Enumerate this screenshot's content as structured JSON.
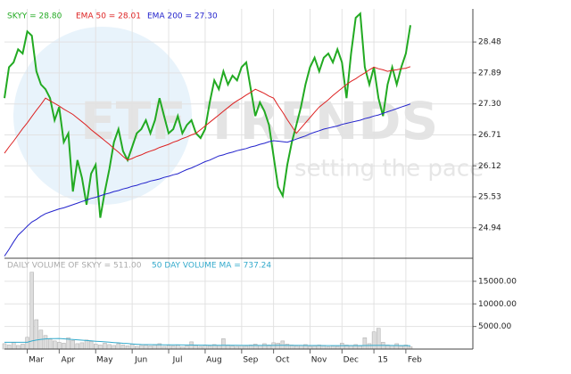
{
  "chart_data": [
    {
      "type": "line",
      "watermark": [
        "ETF TRENDS",
        "setting the pace"
      ],
      "ylim": [
        24.36,
        29.11
      ],
      "yticks": [
        28.48,
        27.89,
        {
          "value": 27.3,
          "label": "27.30"
        },
        26.71,
        26.12,
        25.53,
        24.94
      ],
      "xlim": [
        0,
        89
      ],
      "xticks": [
        {
          "value": 5,
          "label": "Mar"
        },
        {
          "value": 12,
          "label": "Apr"
        },
        {
          "value": 20,
          "label": "May"
        },
        {
          "value": 28,
          "label": "Jun"
        },
        {
          "value": 36,
          "label": "Jul"
        },
        {
          "value": 44,
          "label": "Aug"
        },
        {
          "value": 52,
          "label": "Sep"
        },
        {
          "value": 59,
          "label": "Oct"
        },
        {
          "value": 67,
          "label": "Nov"
        },
        {
          "value": 74,
          "label": "Dec"
        },
        {
          "value": 81,
          "label": "15"
        },
        {
          "value": 88,
          "label": "Feb"
        }
      ],
      "grid": true,
      "series": [
        {
          "name": "SKYY = 28.80",
          "color": "#22aa22",
          "values": [
            27.41,
            28.0,
            28.09,
            28.34,
            28.26,
            28.68,
            28.6,
            27.92,
            27.67,
            27.58,
            27.41,
            26.99,
            27.24,
            26.57,
            26.74,
            25.63,
            26.23,
            25.89,
            25.38,
            25.97,
            26.14,
            25.13,
            25.63,
            26.06,
            26.57,
            26.82,
            26.4,
            26.23,
            26.48,
            26.74,
            26.82,
            26.99,
            26.74,
            26.99,
            27.41,
            27.07,
            26.74,
            26.82,
            27.07,
            26.74,
            26.9,
            26.99,
            26.74,
            26.65,
            26.82,
            27.33,
            27.75,
            27.58,
            27.92,
            27.67,
            27.84,
            27.75,
            28.0,
            28.09,
            27.58,
            27.07,
            27.33,
            27.16,
            26.9,
            26.31,
            25.72,
            25.55,
            26.14,
            26.57,
            26.9,
            27.24,
            27.67,
            28.0,
            28.18,
            27.92,
            28.18,
            28.26,
            28.09,
            28.34,
            28.09,
            27.41,
            28.26,
            28.94,
            29.02,
            28.0,
            27.67,
            28.0,
            27.41,
            27.07,
            27.67,
            28.0,
            27.67,
            28.0,
            28.26,
            28.8
          ]
        },
        {
          "name": "EMA 50 = 28.01",
          "color": "#dd2222",
          "values": [
            26.36,
            26.48,
            26.59,
            26.71,
            26.83,
            26.94,
            27.06,
            27.18,
            27.29,
            27.41,
            27.36,
            27.31,
            27.26,
            27.2,
            27.15,
            27.1,
            27.03,
            26.96,
            26.89,
            26.81,
            26.74,
            26.67,
            26.6,
            26.53,
            26.45,
            26.38,
            26.3,
            26.23,
            26.26,
            26.3,
            26.33,
            26.37,
            26.4,
            26.43,
            26.47,
            26.5,
            26.53,
            26.57,
            26.6,
            26.64,
            26.67,
            26.71,
            26.74,
            26.81,
            26.88,
            26.95,
            27.02,
            27.09,
            27.16,
            27.23,
            27.3,
            27.36,
            27.41,
            27.47,
            27.52,
            27.58,
            27.54,
            27.5,
            27.45,
            27.41,
            27.27,
            27.14,
            27.0,
            26.87,
            26.74,
            26.84,
            26.94,
            27.04,
            27.14,
            27.24,
            27.31,
            27.38,
            27.46,
            27.53,
            27.6,
            27.67,
            27.73,
            27.78,
            27.84,
            27.89,
            27.95,
            28.0,
            27.97,
            27.95,
            27.92,
            27.94,
            27.95,
            27.97,
            27.98,
            28.01
          ]
        },
        {
          "name": "EMA 200 = 27.30",
          "color": "#2222cc",
          "values": [
            24.4,
            24.53,
            24.67,
            24.8,
            24.88,
            24.97,
            25.05,
            25.1,
            25.16,
            25.21,
            25.24,
            25.27,
            25.3,
            25.32,
            25.35,
            25.38,
            25.41,
            25.44,
            25.47,
            25.5,
            25.52,
            25.55,
            25.58,
            25.6,
            25.63,
            25.65,
            25.68,
            25.7,
            25.73,
            25.75,
            25.78,
            25.8,
            25.83,
            25.85,
            25.87,
            25.9,
            25.92,
            25.95,
            25.97,
            26.01,
            26.05,
            26.08,
            26.12,
            26.16,
            26.2,
            26.23,
            26.27,
            26.31,
            26.33,
            26.36,
            26.38,
            26.41,
            26.43,
            26.45,
            26.48,
            26.5,
            26.53,
            26.55,
            26.58,
            26.6,
            26.59,
            26.58,
            26.57,
            26.6,
            26.63,
            26.66,
            26.69,
            26.73,
            26.76,
            26.79,
            26.82,
            26.84,
            26.86,
            26.88,
            26.91,
            26.93,
            26.95,
            26.97,
            26.99,
            27.02,
            27.04,
            27.07,
            27.09,
            27.12,
            27.15,
            27.18,
            27.21,
            27.24,
            27.27,
            27.3
          ]
        }
      ]
    },
    {
      "type": "bar",
      "ylim": [
        0,
        20100
      ],
      "yticks": [
        {
          "value": 15000,
          "label": "15000.00"
        },
        {
          "value": 10000,
          "label": "10000.00"
        },
        {
          "value": 5000,
          "label": "5000.00"
        }
      ],
      "series": [
        {
          "name": "DAILY VOLUME OF SKYY = 511.00",
          "color": "#aaaaaa",
          "values": [
            1200,
            900,
            1500,
            800,
            1100,
            2600,
            17000,
            6500,
            4200,
            3000,
            2200,
            1800,
            1500,
            1300,
            2500,
            1900,
            1200,
            1400,
            2000,
            1700,
            1100,
            900,
            1300,
            1000,
            800,
            1200,
            900,
            700,
            1100,
            600,
            800,
            900,
            700,
            1000,
            1200,
            600,
            800,
            700,
            900,
            500,
            700,
            1600,
            800,
            600,
            900,
            700,
            1000,
            800,
            2300,
            900,
            700,
            600,
            800,
            700,
            900,
            1100,
            800,
            1200,
            900,
            1400,
            1300,
            1800,
            1100,
            900,
            700,
            800,
            1000,
            600,
            700,
            900,
            800,
            500,
            700,
            600,
            1300,
            900,
            800,
            1000,
            700,
            2500,
            1200,
            3800,
            4600,
            1500,
            900,
            800,
            1200,
            700,
            900,
            511
          ]
        },
        {
          "name": "50 DAY VOLUME MA = 737.24",
          "color": "#33aacc",
          "type": "line",
          "values": [
            1500,
            1500,
            1500,
            1500,
            1500,
            1500,
            1800,
            2000,
            2150,
            2250,
            2300,
            2330,
            2350,
            2270,
            2190,
            2120,
            2040,
            1970,
            1890,
            1820,
            1740,
            1670,
            1590,
            1520,
            1440,
            1370,
            1290,
            1220,
            1140,
            1070,
            1000,
            990,
            980,
            970,
            960,
            950,
            940,
            930,
            920,
            910,
            900,
            890,
            880,
            870,
            860,
            850,
            845,
            840,
            835,
            830,
            825,
            820,
            815,
            810,
            805,
            800,
            800,
            805,
            810,
            815,
            820,
            820,
            815,
            810,
            805,
            800,
            795,
            790,
            785,
            780,
            775,
            770,
            765,
            760,
            760,
            760,
            765,
            770,
            775,
            780,
            790,
            800,
            810,
            810,
            800,
            790,
            780,
            770,
            760,
            737.24
          ]
        }
      ]
    }
  ]
}
